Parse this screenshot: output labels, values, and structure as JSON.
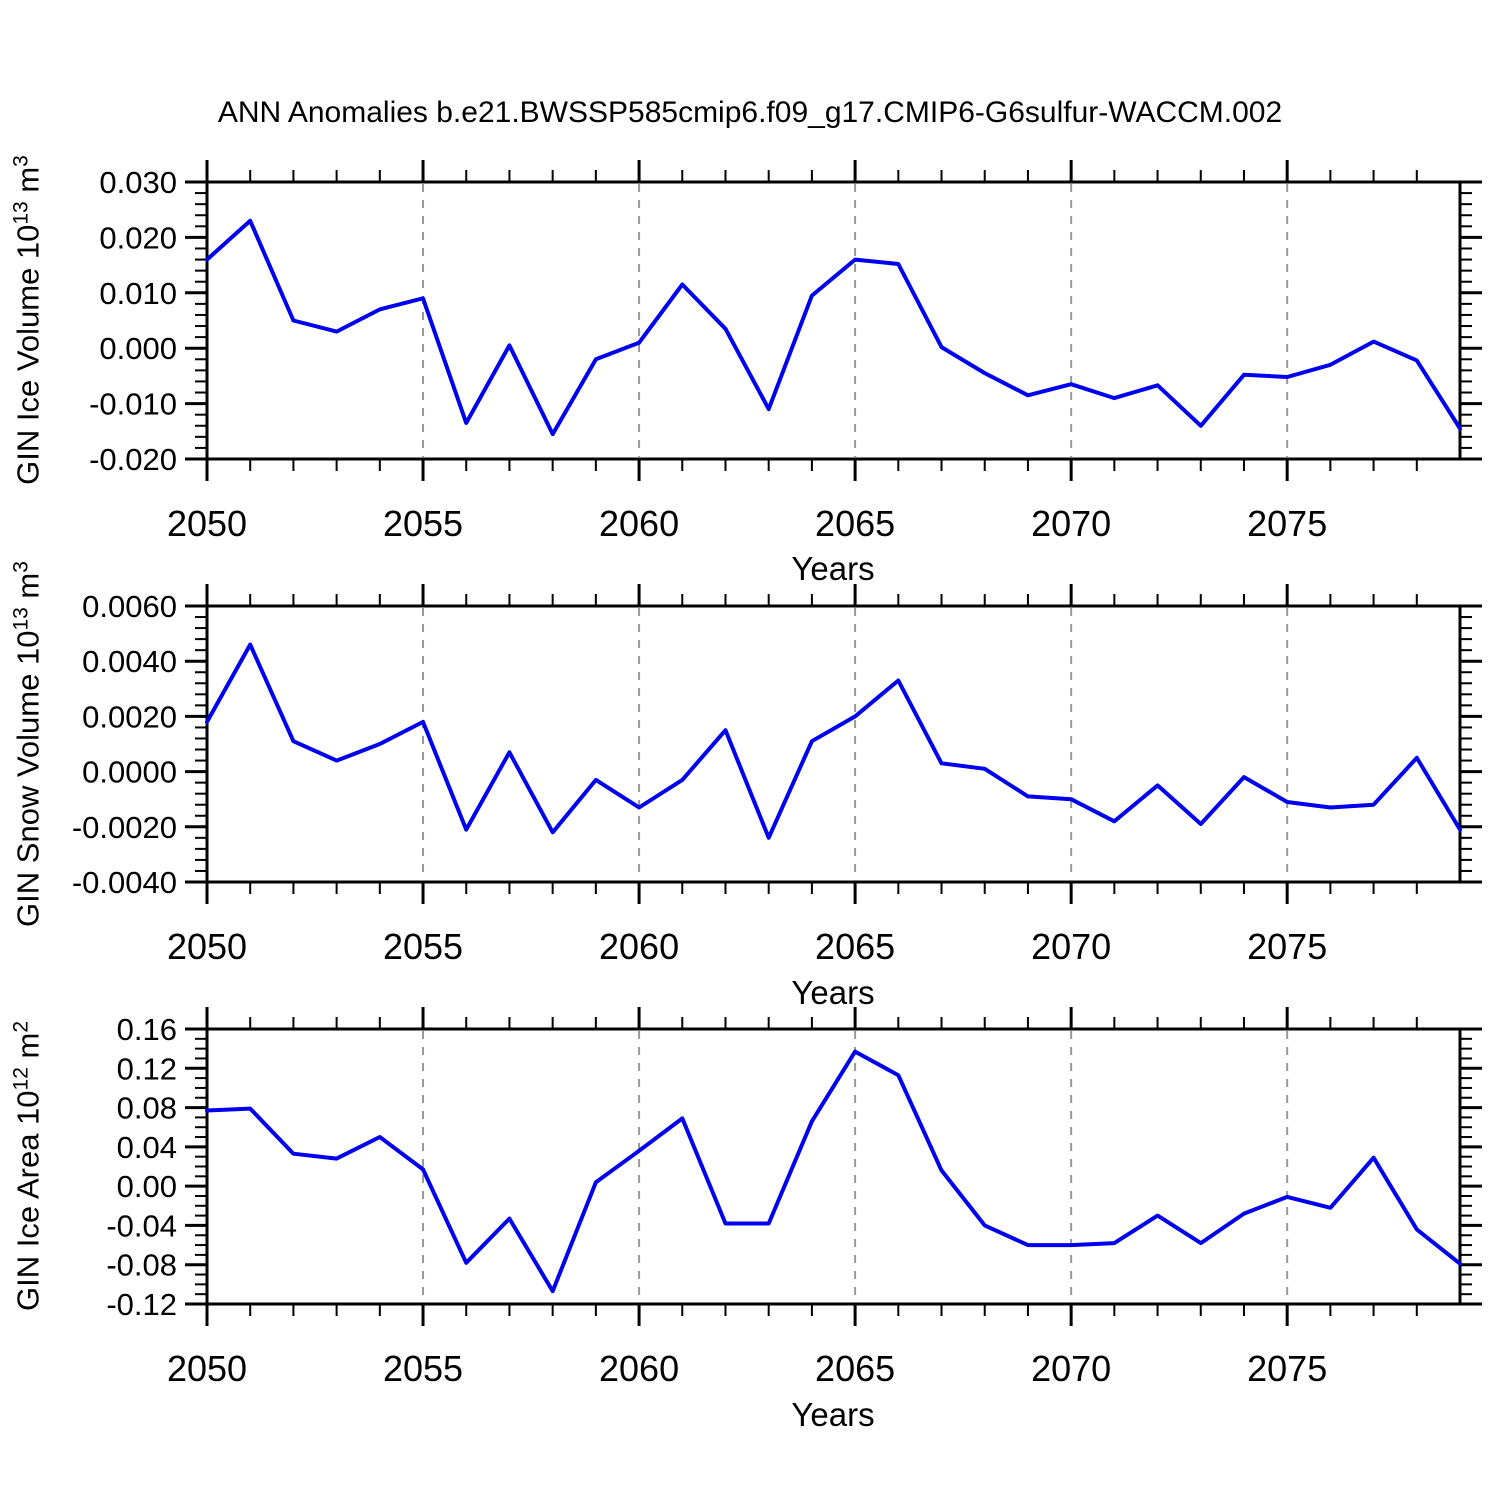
{
  "title": "ANN Anomalies b.e21.BWSSP585cmip6.f09_g17.CMIP6-G6sulfur-WACCM.002",
  "line_color": "#0000F0",
  "grid_color": "#999999",
  "axis_color": "#000000",
  "chart_data": [
    {
      "type": "line",
      "name": "gin-ice-volume",
      "title": "",
      "xlabel": "Years",
      "ylabel": {
        "pre": "GIN Ice Volume 10",
        "sup1": "13",
        "mid": " m",
        "sup2": "3"
      },
      "ylim": [
        -0.02,
        0.03
      ],
      "y_major": 0.01,
      "y_minor": 0.002,
      "yticks": [
        {
          "v": 0.03,
          "label": "0.030"
        },
        {
          "v": 0.02,
          "label": "0.020"
        },
        {
          "v": 0.01,
          "label": "0.010"
        },
        {
          "v": 0.0,
          "label": "0.000"
        },
        {
          "v": -0.01,
          "label": "-0.010"
        },
        {
          "v": -0.02,
          "label": "-0.020"
        }
      ],
      "x_range": [
        2050,
        2079
      ],
      "x_minor": 1,
      "xticks": [
        {
          "v": 2050,
          "label": "2050"
        },
        {
          "v": 2055,
          "label": "2055"
        },
        {
          "v": 2060,
          "label": "2060"
        },
        {
          "v": 2065,
          "label": "2065"
        },
        {
          "v": 2070,
          "label": "2070"
        },
        {
          "v": 2075,
          "label": "2075"
        }
      ],
      "grid_x": [
        2055,
        2060,
        2065,
        2070,
        2075
      ],
      "x": [
        2050,
        2051,
        2052,
        2053,
        2054,
        2055,
        2056,
        2057,
        2058,
        2059,
        2060,
        2061,
        2062,
        2063,
        2064,
        2065,
        2066,
        2067,
        2068,
        2069,
        2070,
        2071,
        2072,
        2073,
        2074,
        2075,
        2076,
        2077,
        2078,
        2079
      ],
      "values": [
        0.016,
        0.023,
        0.005,
        0.003,
        0.007,
        0.009,
        -0.0135,
        0.0005,
        -0.0155,
        -0.002,
        0.001,
        0.0115,
        0.0035,
        -0.011,
        0.0095,
        0.016,
        0.0152,
        0.0002,
        -0.0045,
        -0.0085,
        -0.0065,
        -0.009,
        -0.0067,
        -0.014,
        -0.0048,
        -0.0052,
        -0.003,
        0.0012,
        -0.0022,
        -0.0145
      ]
    },
    {
      "type": "line",
      "name": "gin-snow-volume",
      "title": "",
      "xlabel": "Years",
      "ylabel": {
        "pre": "GIN Snow Volume 10",
        "sup1": "13",
        "mid": " m",
        "sup2": "3"
      },
      "ylim": [
        -0.004,
        0.006
      ],
      "y_major": 0.002,
      "y_minor": 0.0004,
      "yticks": [
        {
          "v": 0.006,
          "label": "0.0060"
        },
        {
          "v": 0.004,
          "label": "0.0040"
        },
        {
          "v": 0.002,
          "label": "0.0020"
        },
        {
          "v": 0.0,
          "label": "0.0000"
        },
        {
          "v": -0.002,
          "label": "-0.0020"
        },
        {
          "v": -0.004,
          "label": "-0.0040"
        }
      ],
      "x_range": [
        2050,
        2079
      ],
      "x_minor": 1,
      "xticks": [
        {
          "v": 2050,
          "label": "2050"
        },
        {
          "v": 2055,
          "label": "2055"
        },
        {
          "v": 2060,
          "label": "2060"
        },
        {
          "v": 2065,
          "label": "2065"
        },
        {
          "v": 2070,
          "label": "2070"
        },
        {
          "v": 2075,
          "label": "2075"
        }
      ],
      "grid_x": [
        2055,
        2060,
        2065,
        2070,
        2075
      ],
      "x": [
        2050,
        2051,
        2052,
        2053,
        2054,
        2055,
        2056,
        2057,
        2058,
        2059,
        2060,
        2061,
        2062,
        2063,
        2064,
        2065,
        2066,
        2067,
        2068,
        2069,
        2070,
        2071,
        2072,
        2073,
        2074,
        2075,
        2076,
        2077,
        2078,
        2079
      ],
      "values": [
        0.0018,
        0.0046,
        0.0011,
        0.0004,
        0.001,
        0.0018,
        -0.0021,
        0.0007,
        -0.0022,
        -0.0003,
        -0.0013,
        -0.0003,
        0.0015,
        -0.0024,
        0.0011,
        0.002,
        0.0033,
        0.0003,
        0.0001,
        -0.0009,
        -0.001,
        -0.0018,
        -0.0005,
        -0.0019,
        -0.0002,
        -0.0011,
        -0.0013,
        -0.0012,
        0.0005,
        -0.0021
      ]
    },
    {
      "type": "line",
      "name": "gin-ice-area",
      "title": "",
      "xlabel": "Years",
      "ylabel": {
        "pre": "GIN Ice Area 10",
        "sup1": "12",
        "mid": " m",
        "sup2": "2"
      },
      "ylim": [
        -0.12,
        0.16
      ],
      "y_major": 0.04,
      "y_minor": 0.01,
      "yticks": [
        {
          "v": 0.16,
          "label": "0.16"
        },
        {
          "v": 0.12,
          "label": "0.12"
        },
        {
          "v": 0.08,
          "label": "0.08"
        },
        {
          "v": 0.04,
          "label": "0.04"
        },
        {
          "v": 0.0,
          "label": "0.00"
        },
        {
          "v": -0.04,
          "label": "-0.04"
        },
        {
          "v": -0.08,
          "label": "-0.08"
        },
        {
          "v": -0.12,
          "label": "-0.12"
        }
      ],
      "x_range": [
        2050,
        2079
      ],
      "x_minor": 1,
      "xticks": [
        {
          "v": 2050,
          "label": "2050"
        },
        {
          "v": 2055,
          "label": "2055"
        },
        {
          "v": 2060,
          "label": "2060"
        },
        {
          "v": 2065,
          "label": "2065"
        },
        {
          "v": 2070,
          "label": "2070"
        },
        {
          "v": 2075,
          "label": "2075"
        }
      ],
      "grid_x": [
        2055,
        2060,
        2065,
        2070,
        2075
      ],
      "x": [
        2050,
        2051,
        2052,
        2053,
        2054,
        2055,
        2056,
        2057,
        2058,
        2059,
        2060,
        2061,
        2062,
        2063,
        2064,
        2065,
        2066,
        2067,
        2068,
        2069,
        2070,
        2071,
        2072,
        2073,
        2074,
        2075,
        2076,
        2077,
        2078,
        2079
      ],
      "values": [
        0.077,
        0.079,
        0.033,
        0.028,
        0.05,
        0.017,
        -0.078,
        -0.033,
        -0.107,
        0.004,
        0.036,
        0.069,
        -0.038,
        -0.038,
        0.066,
        0.137,
        0.113,
        0.016,
        -0.04,
        -0.06,
        -0.06,
        -0.058,
        -0.03,
        -0.058,
        -0.028,
        -0.011,
        -0.022,
        0.029,
        -0.044,
        -0.079
      ]
    }
  ]
}
